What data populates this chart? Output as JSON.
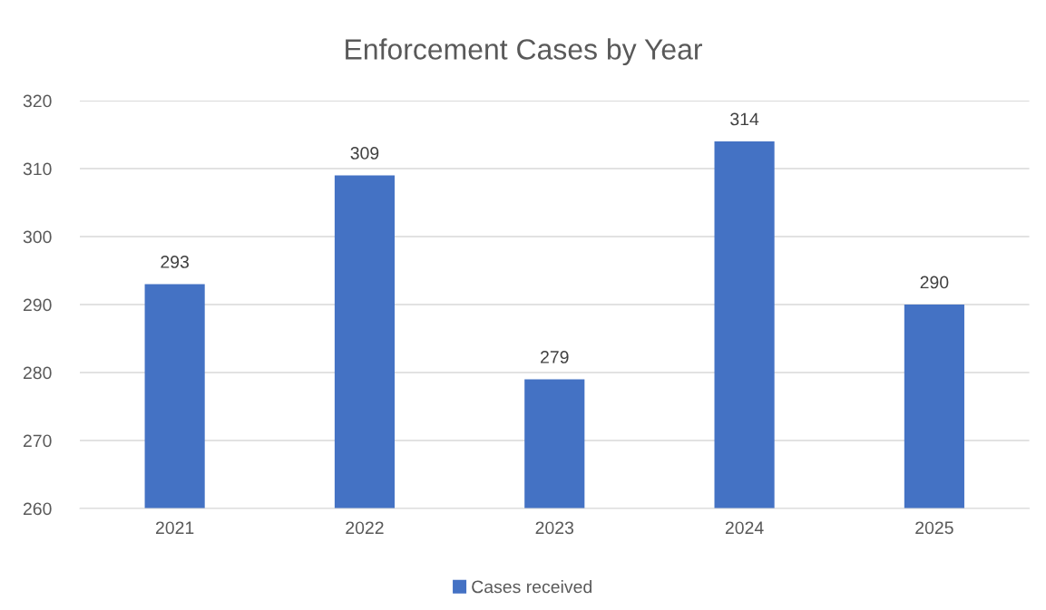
{
  "chart_data": {
    "type": "bar",
    "title": "Enforcement Cases by Year",
    "categories": [
      "2021",
      "2022",
      "2023",
      "2024",
      "2025"
    ],
    "series": [
      {
        "name": "Cases received",
        "color": "#4472c4",
        "values": [
          293,
          309,
          279,
          314,
          290
        ]
      }
    ],
    "ylim": [
      260,
      320
    ],
    "yticks": [
      260,
      270,
      280,
      290,
      300,
      310,
      320
    ],
    "grid": "y",
    "legend": "bottom",
    "data_labels": true
  }
}
